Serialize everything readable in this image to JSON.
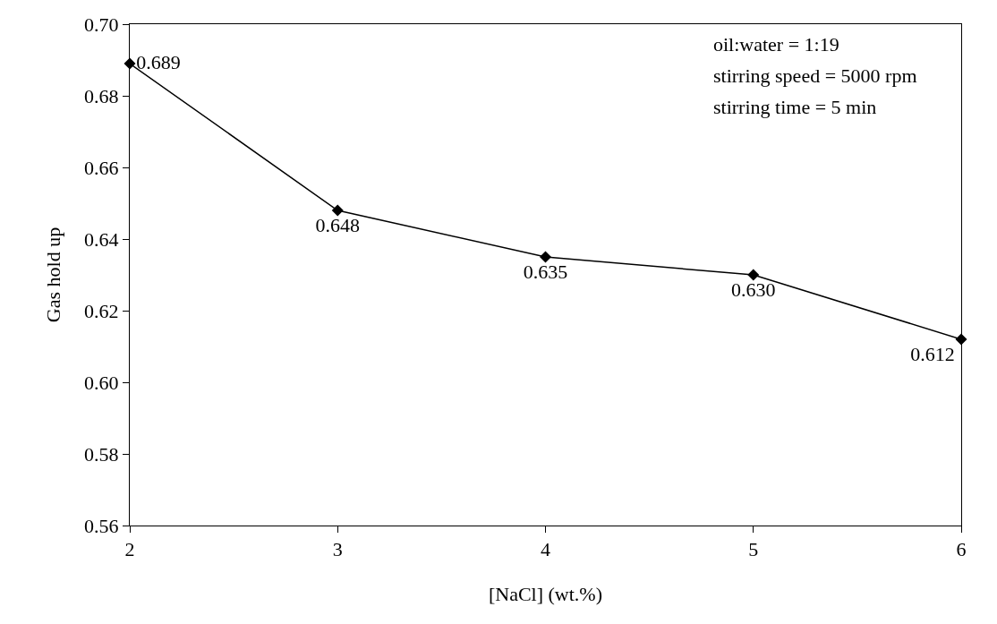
{
  "chart_data": {
    "type": "line",
    "xlabel": "[NaCl] (wt.%)",
    "ylabel": "Gas hold up",
    "x": [
      2,
      3,
      4,
      5,
      6
    ],
    "series": [
      {
        "color": "#000000",
        "values": [
          0.689,
          0.648,
          0.635,
          0.63,
          0.612
        ]
      }
    ],
    "value_labels": [
      "0.689",
      "0.648",
      "0.635",
      "0.630",
      "0.612"
    ],
    "xlim": [
      2,
      6
    ],
    "xticks": [
      2,
      3,
      4,
      5,
      6
    ],
    "ylim": [
      0.56,
      0.7
    ],
    "yticks": [
      {
        "value": 0.56,
        "label": "0.56"
      },
      {
        "value": 0.58,
        "label": "0.58"
      },
      {
        "value": 0.6,
        "label": "0.60"
      },
      {
        "value": 0.62,
        "label": "0.62"
      },
      {
        "value": 0.64,
        "label": "0.64"
      },
      {
        "value": 0.66,
        "label": "0.66"
      },
      {
        "value": 0.68,
        "label": "0.68"
      },
      {
        "value": 0.7,
        "label": "0.70"
      }
    ],
    "annotations": [
      "oil:water = 1:19",
      "stirring speed = 5000 rpm",
      "stirring time = 5 min"
    ],
    "grid": false,
    "legend": false,
    "marker": "diamond",
    "line_style": "solid"
  }
}
